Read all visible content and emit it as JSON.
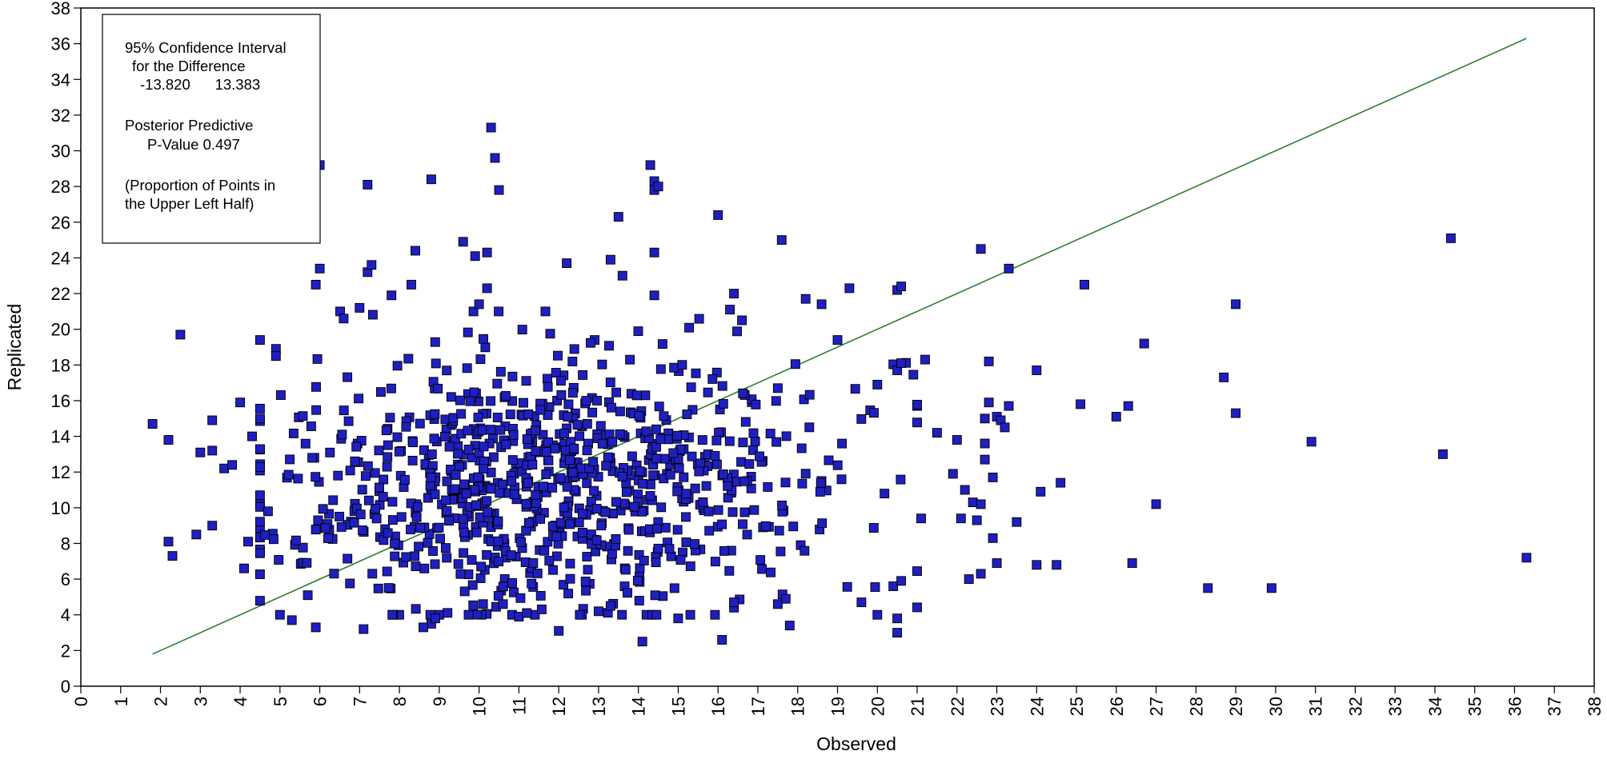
{
  "chart_data": {
    "type": "scatter",
    "xlabel": "Observed",
    "ylabel": "Replicated",
    "xlim": [
      0,
      38
    ],
    "ylim": [
      0,
      38
    ],
    "x_ticks": [
      0,
      1,
      2,
      3,
      4,
      5,
      6,
      7,
      8,
      9,
      10,
      11,
      12,
      13,
      14,
      15,
      16,
      17,
      18,
      19,
      20,
      21,
      22,
      23,
      24,
      25,
      26,
      27,
      28,
      29,
      30,
      31,
      32,
      33,
      34,
      35,
      36,
      37,
      38
    ],
    "y_ticks": [
      0,
      2,
      4,
      6,
      8,
      10,
      12,
      14,
      16,
      18,
      20,
      22,
      24,
      26,
      28,
      30,
      32,
      34,
      36,
      38
    ],
    "grid": false,
    "reference_line": {
      "x": [
        1.8,
        36.3
      ],
      "y": [
        1.8,
        36.3
      ],
      "color": "#2e7d32"
    },
    "marker_color": "#1f1fbf",
    "marker_edge": "#000000",
    "legend_box": {
      "placement": "top-left",
      "lines": [
        "95% Confidence Interval",
        "for the Difference",
        "-13.820      13.383",
        "",
        "Posterior Predictive",
        "P-Value 0.497",
        "",
        "(Proportion of Points in",
        "the Upper Left Half)"
      ]
    },
    "outlier_points": [
      [
        1.8,
        14.7
      ],
      [
        2.2,
        8.1
      ],
      [
        2.3,
        7.3
      ],
      [
        2.2,
        13.8
      ],
      [
        2.5,
        19.7
      ],
      [
        2.9,
        8.5
      ],
      [
        3.0,
        13.1
      ],
      [
        3.3,
        9.0
      ],
      [
        3.3,
        14.9
      ],
      [
        3.3,
        13.2
      ],
      [
        3.6,
        12.2
      ],
      [
        3.8,
        12.4
      ],
      [
        4.0,
        15.9
      ],
      [
        4.1,
        6.6
      ],
      [
        4.2,
        8.1
      ],
      [
        4.3,
        14.0
      ],
      [
        4.5,
        19.4
      ],
      [
        4.5,
        15.0
      ],
      [
        4.7,
        9.8
      ],
      [
        4.9,
        18.9
      ],
      [
        4.9,
        18.5
      ],
      [
        5.0,
        4.0
      ],
      [
        5.3,
        3.7
      ],
      [
        5.7,
        5.1
      ],
      [
        5.9,
        3.3
      ],
      [
        6.0,
        29.2
      ],
      [
        6.0,
        23.4
      ],
      [
        5.9,
        22.5
      ],
      [
        6.6,
        20.6
      ],
      [
        7.2,
        28.1
      ],
      [
        7.1,
        3.2
      ],
      [
        7.2,
        23.2
      ],
      [
        7.3,
        23.6
      ],
      [
        7.0,
        21.2
      ],
      [
        7.8,
        21.9
      ],
      [
        8.3,
        22.5
      ],
      [
        8.4,
        24.4
      ],
      [
        8.8,
        28.4
      ],
      [
        8.8,
        3.5
      ],
      [
        8.9,
        3.8
      ],
      [
        8.6,
        3.3
      ],
      [
        9.6,
        24.9
      ],
      [
        9.9,
        24.1
      ],
      [
        10.2,
        24.3
      ],
      [
        10.0,
        21.4
      ],
      [
        10.3,
        31.3
      ],
      [
        10.4,
        29.6
      ],
      [
        10.5,
        27.8
      ],
      [
        10.2,
        22.3
      ],
      [
        10.1,
        4.6
      ],
      [
        10.6,
        4.6
      ],
      [
        11.0,
        3.9
      ],
      [
        11.2,
        4.1
      ],
      [
        12.0,
        3.1
      ],
      [
        12.2,
        23.7
      ],
      [
        13.0,
        4.2
      ],
      [
        13.3,
        4.5
      ],
      [
        13.3,
        23.9
      ],
      [
        13.5,
        26.3
      ],
      [
        13.6,
        23.0
      ],
      [
        14.1,
        2.5
      ],
      [
        14.3,
        29.2
      ],
      [
        14.4,
        28.3
      ],
      [
        14.4,
        27.8
      ],
      [
        14.5,
        28.0
      ],
      [
        14.4,
        24.3
      ],
      [
        14.4,
        21.9
      ],
      [
        15.0,
        3.8
      ],
      [
        16.0,
        26.4
      ],
      [
        16.1,
        2.6
      ],
      [
        16.3,
        21.1
      ],
      [
        16.4,
        22.0
      ],
      [
        16.4,
        4.4
      ],
      [
        16.4,
        4.7
      ],
      [
        16.6,
        20.5
      ],
      [
        17.5,
        4.6
      ],
      [
        17.5,
        16.7
      ],
      [
        17.6,
        25.0
      ],
      [
        17.7,
        4.9
      ],
      [
        17.8,
        3.4
      ],
      [
        18.2,
        21.7
      ],
      [
        18.6,
        21.4
      ],
      [
        19.0,
        19.4
      ],
      [
        19.3,
        22.3
      ],
      [
        19.6,
        4.7
      ],
      [
        20.0,
        16.9
      ],
      [
        20.4,
        5.6
      ],
      [
        20.5,
        3.8
      ],
      [
        20.5,
        3.0
      ],
      [
        20.6,
        5.9
      ],
      [
        20.5,
        22.2
      ],
      [
        20.6,
        22.4
      ],
      [
        20.5,
        17.7
      ],
      [
        20.6,
        18.1
      ],
      [
        21.1,
        9.4
      ],
      [
        21.2,
        18.3
      ],
      [
        21.5,
        14.2
      ],
      [
        21.9,
        11.9
      ],
      [
        22.0,
        13.8
      ],
      [
        22.1,
        9.4
      ],
      [
        22.2,
        11.0
      ],
      [
        22.3,
        6.0
      ],
      [
        22.4,
        10.3
      ],
      [
        22.5,
        9.3
      ],
      [
        22.6,
        24.5
      ],
      [
        22.6,
        6.3
      ],
      [
        22.6,
        10.2
      ],
      [
        22.7,
        15.0
      ],
      [
        22.7,
        13.6
      ],
      [
        22.7,
        12.7
      ],
      [
        22.8,
        18.2
      ],
      [
        22.8,
        15.9
      ],
      [
        22.9,
        8.3
      ],
      [
        22.9,
        11.7
      ],
      [
        23.0,
        6.9
      ],
      [
        23.0,
        15.1
      ],
      [
        23.1,
        14.9
      ],
      [
        23.2,
        14.5
      ],
      [
        23.3,
        23.4
      ],
      [
        23.3,
        15.7
      ],
      [
        23.5,
        9.2
      ],
      [
        24.0,
        6.8
      ],
      [
        24.0,
        17.7
      ],
      [
        24.1,
        10.9
      ],
      [
        24.5,
        6.8
      ],
      [
        24.6,
        11.4
      ],
      [
        25.1,
        15.8
      ],
      [
        25.2,
        22.5
      ],
      [
        26.0,
        15.1
      ],
      [
        26.3,
        15.7
      ],
      [
        26.4,
        6.9
      ],
      [
        26.7,
        19.2
      ],
      [
        27.0,
        10.2
      ],
      [
        28.3,
        5.5
      ],
      [
        28.7,
        17.3
      ],
      [
        29.0,
        21.4
      ],
      [
        29.0,
        15.3
      ],
      [
        29.9,
        5.5
      ],
      [
        30.9,
        13.7
      ],
      [
        34.2,
        13.0
      ],
      [
        34.4,
        25.1
      ],
      [
        36.3,
        7.2
      ]
    ],
    "cluster": {
      "n_points": 900,
      "x_center": 11.8,
      "x_sd": 3.6,
      "x_range": [
        4.5,
        21.0
      ],
      "y_center": 11.3,
      "y_sd": 3.6,
      "y_range": [
        4.0,
        21.0
      ]
    }
  }
}
